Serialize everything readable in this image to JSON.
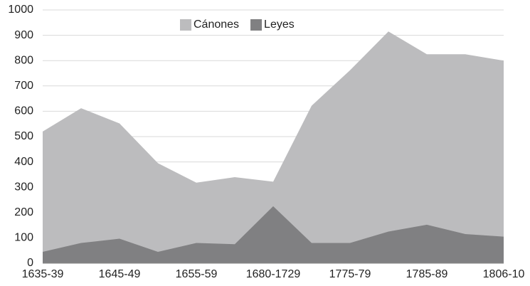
{
  "chart_data": {
    "type": "area",
    "categories": [
      "1635-39",
      null,
      "1645-49",
      null,
      "1655-59",
      null,
      "1680-1729",
      null,
      "1775-79",
      null,
      "1785-89",
      null,
      "1806-10"
    ],
    "series": [
      {
        "name": "Cánones",
        "color": "#bcbcbe",
        "values": [
          520,
          612,
          552,
          395,
          318,
          340,
          322,
          622,
          762,
          915,
          825,
          825,
          800
        ]
      },
      {
        "name": "Leyes",
        "color": "#808082",
        "values": [
          45,
          80,
          97,
          45,
          80,
          75,
          225,
          80,
          80,
          125,
          152,
          115,
          105
        ]
      }
    ],
    "ylim": [
      0,
      1000
    ],
    "yticks": [
      0,
      100,
      200,
      300,
      400,
      500,
      600,
      700,
      800,
      900,
      1000
    ],
    "grid": true,
    "legend": "top"
  }
}
